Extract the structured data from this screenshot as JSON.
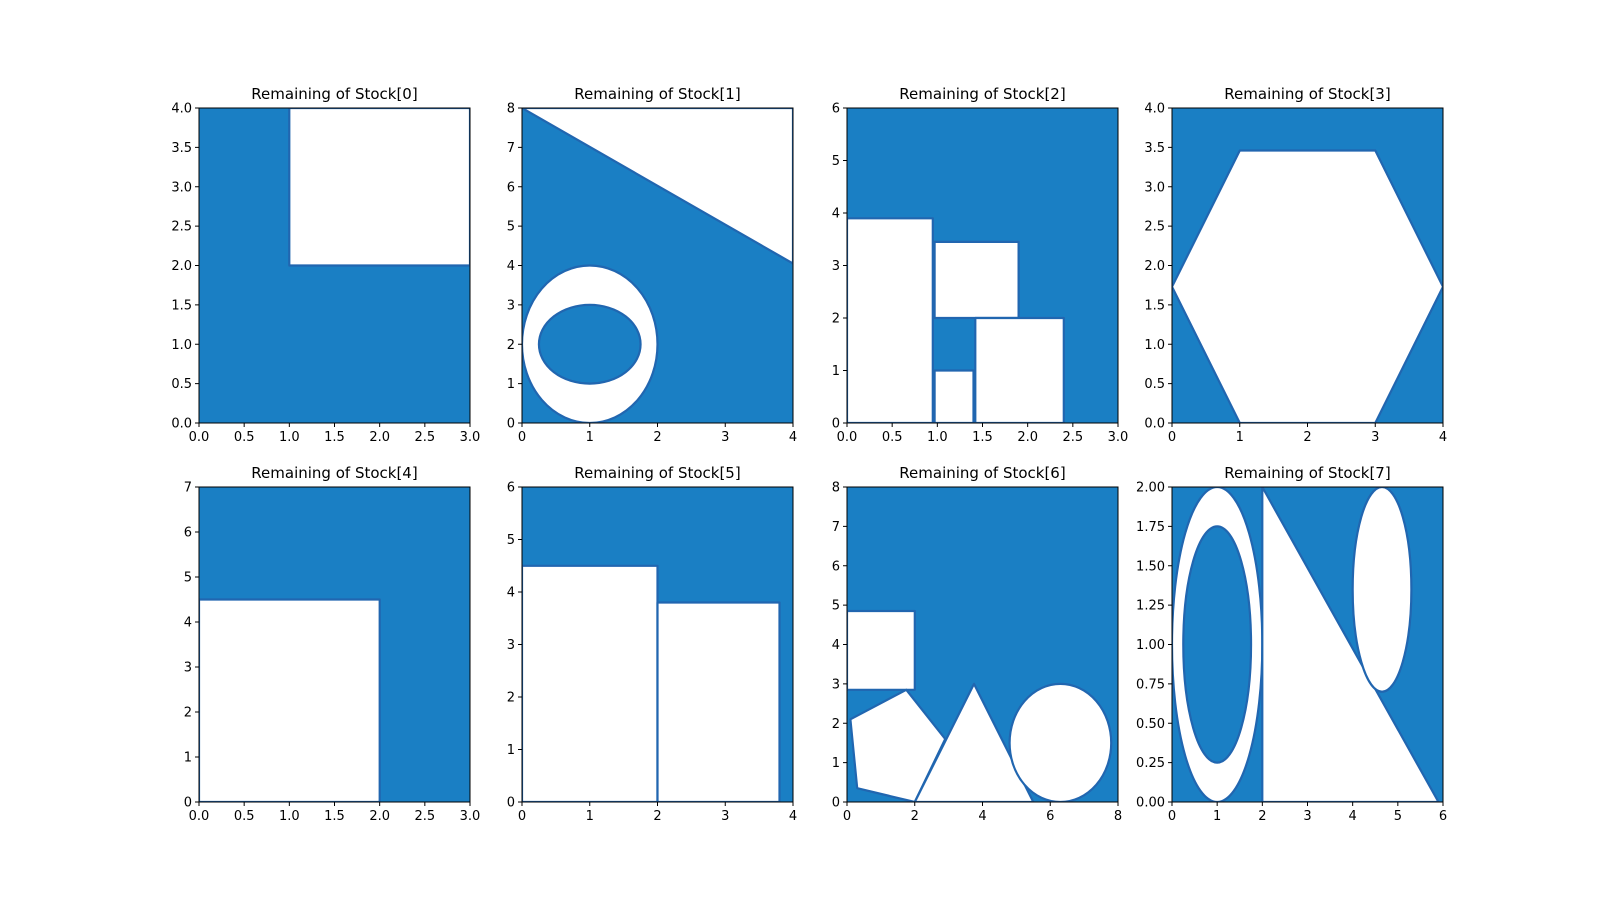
{
  "chart_data": [
    {
      "type": "area",
      "title": "Remaining of Stock[0]",
      "xlim": [
        0,
        3
      ],
      "ylim": [
        0,
        4
      ],
      "xticks": [
        "0.0",
        "0.5",
        "1.0",
        "1.5",
        "2.0",
        "2.5",
        "3.0"
      ],
      "yticks": [
        "0.0",
        "0.5",
        "1.0",
        "1.5",
        "2.0",
        "2.5",
        "3.0",
        "3.5",
        "4.0"
      ],
      "holes": [
        {
          "shape": "polygon",
          "points": [
            [
              1,
              2
            ],
            [
              3,
              2
            ],
            [
              3,
              4
            ],
            [
              1,
              4
            ]
          ]
        }
      ]
    },
    {
      "type": "area",
      "title": "Remaining of Stock[1]",
      "xlim": [
        0,
        4
      ],
      "ylim": [
        0,
        8
      ],
      "xticks": [
        "0",
        "1",
        "2",
        "3",
        "4"
      ],
      "yticks": [
        "0",
        "1",
        "2",
        "3",
        "4",
        "5",
        "6",
        "7",
        "8"
      ],
      "holes": [
        {
          "shape": "polygon",
          "points": [
            [
              0,
              8
            ],
            [
              4,
              8
            ],
            [
              4,
              4.05
            ]
          ]
        },
        {
          "shape": "ellipse",
          "cx": 1,
          "cy": 2,
          "rx": 1,
          "ry": 2,
          "islands": [
            {
              "cx": 1,
              "cy": 2,
              "rx": 0.75,
              "ry": 1
            }
          ]
        }
      ]
    },
    {
      "type": "area",
      "title": "Remaining of Stock[2]",
      "xlim": [
        0,
        3
      ],
      "ylim": [
        0,
        6
      ],
      "xticks": [
        "0.0",
        "0.5",
        "1.0",
        "1.5",
        "2.0",
        "2.5",
        "3.0"
      ],
      "yticks": [
        "0",
        "1",
        "2",
        "3",
        "4",
        "5",
        "6"
      ],
      "holes": [
        {
          "shape": "polygon",
          "points": [
            [
              0,
              0
            ],
            [
              0.95,
              0
            ],
            [
              0.95,
              3.9
            ],
            [
              0,
              3.9
            ]
          ]
        },
        {
          "shape": "polygon",
          "points": [
            [
              0.97,
              2
            ],
            [
              1.9,
              2
            ],
            [
              1.9,
              3.45
            ],
            [
              0.97,
              3.45
            ]
          ]
        },
        {
          "shape": "polygon",
          "points": [
            [
              0.97,
              0
            ],
            [
              1.4,
              0
            ],
            [
              1.4,
              1
            ],
            [
              0.97,
              1
            ]
          ]
        },
        {
          "shape": "polygon",
          "points": [
            [
              1.42,
              0
            ],
            [
              2.4,
              0
            ],
            [
              2.4,
              2
            ],
            [
              1.42,
              2
            ]
          ]
        }
      ]
    },
    {
      "type": "area",
      "title": "Remaining of Stock[3]",
      "xlim": [
        0,
        4
      ],
      "ylim": [
        0,
        4
      ],
      "xticks": [
        "0",
        "1",
        "2",
        "3",
        "4"
      ],
      "yticks": [
        "0.0",
        "0.5",
        "1.0",
        "1.5",
        "2.0",
        "2.5",
        "3.0",
        "3.5",
        "4.0"
      ],
      "holes": [
        {
          "shape": "polygon",
          "points": [
            [
              1,
              0
            ],
            [
              3,
              0
            ],
            [
              4,
              1.73
            ],
            [
              3,
              3.46
            ],
            [
              1,
              3.46
            ],
            [
              0,
              1.73
            ]
          ]
        }
      ]
    },
    {
      "type": "area",
      "title": "Remaining of Stock[4]",
      "xlim": [
        0,
        3
      ],
      "ylim": [
        0,
        7
      ],
      "xticks": [
        "0.0",
        "0.5",
        "1.0",
        "1.5",
        "2.0",
        "2.5",
        "3.0"
      ],
      "yticks": [
        "0",
        "1",
        "2",
        "3",
        "4",
        "5",
        "6",
        "7"
      ],
      "holes": [
        {
          "shape": "polygon",
          "points": [
            [
              0,
              0
            ],
            [
              2,
              0
            ],
            [
              2,
              4.5
            ],
            [
              0,
              4.5
            ]
          ]
        }
      ]
    },
    {
      "type": "area",
      "title": "Remaining of Stock[5]",
      "xlim": [
        0,
        4
      ],
      "ylim": [
        0,
        6
      ],
      "xticks": [
        "0",
        "1",
        "2",
        "3",
        "4"
      ],
      "yticks": [
        "0",
        "1",
        "2",
        "3",
        "4",
        "5",
        "6"
      ],
      "holes": [
        {
          "shape": "polygon",
          "points": [
            [
              0,
              0
            ],
            [
              2,
              0
            ],
            [
              2,
              4.5
            ],
            [
              0,
              4.5
            ]
          ]
        },
        {
          "shape": "polygon",
          "points": [
            [
              2,
              0
            ],
            [
              3.8,
              0
            ],
            [
              3.8,
              3.8
            ],
            [
              2,
              3.8
            ]
          ]
        }
      ]
    },
    {
      "type": "area",
      "title": "Remaining of Stock[6]",
      "xlim": [
        0,
        8
      ],
      "ylim": [
        0,
        8
      ],
      "xticks": [
        "0",
        "2",
        "4",
        "6",
        "8"
      ],
      "yticks": [
        "0",
        "1",
        "2",
        "3",
        "4",
        "5",
        "6",
        "7",
        "8"
      ],
      "holes": [
        {
          "shape": "polygon",
          "points": [
            [
              0,
              2.85
            ],
            [
              2,
              2.85
            ],
            [
              2,
              4.85
            ],
            [
              0,
              4.85
            ]
          ]
        },
        {
          "shape": "polygon",
          "points": [
            [
              0.3,
              0.35
            ],
            [
              2,
              0
            ],
            [
              2.9,
              1.6
            ],
            [
              1.75,
              2.85
            ],
            [
              0.1,
              2.1
            ]
          ]
        },
        {
          "shape": "polygon",
          "points": [
            [
              2,
              0
            ],
            [
              5.5,
              0
            ],
            [
              3.75,
              3
            ]
          ]
        },
        {
          "shape": "ellipse",
          "cx": 6.3,
          "cy": 1.5,
          "rx": 1.5,
          "ry": 1.5
        }
      ]
    },
    {
      "type": "area",
      "title": "Remaining of Stock[7]",
      "xlim": [
        0,
        6
      ],
      "ylim": [
        0,
        2
      ],
      "xticks": [
        "0",
        "1",
        "2",
        "3",
        "4",
        "5",
        "6"
      ],
      "yticks": [
        "0.00",
        "0.25",
        "0.50",
        "0.75",
        "1.00",
        "1.25",
        "1.50",
        "1.75",
        "2.00"
      ],
      "holes": [
        {
          "shape": "ellipse",
          "cx": 1,
          "cy": 1,
          "rx": 1,
          "ry": 1,
          "islands": [
            {
              "cx": 1,
              "cy": 1,
              "rx": 0.75,
              "ry": 0.75
            }
          ]
        },
        {
          "shape": "polygon",
          "points": [
            [
              2,
              0
            ],
            [
              5.9,
              0
            ],
            [
              2,
              2
            ]
          ]
        },
        {
          "shape": "ellipse",
          "cx": 4.65,
          "cy": 1.35,
          "rx": 0.65,
          "ry": 0.65
        }
      ]
    }
  ],
  "colors": {
    "fill": "#1a7fc4",
    "edge": "#2166b0",
    "hole": "#ffffff"
  }
}
